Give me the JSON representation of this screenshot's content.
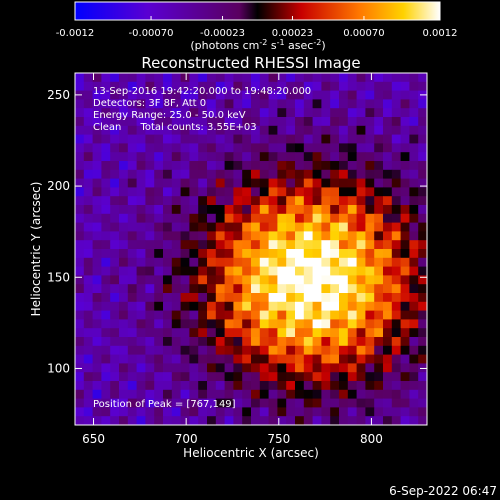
{
  "colorbar": {
    "tick_labels": [
      "-0.0012",
      "-0.00070",
      "-0.00023",
      "0.00023",
      "0.00070",
      "0.0012"
    ],
    "tick_values": [
      -0.0012,
      -0.0007,
      -0.00023,
      0.00023,
      0.0007,
      0.0012
    ],
    "range": [
      -0.0012,
      0.0012
    ],
    "unit_label_parts": [
      "(photons cm",
      "-2",
      " s",
      "-1",
      " asec",
      "-2",
      ")"
    ],
    "palette": [
      "#0000ff",
      "#6b00c8",
      "#ff0000",
      "#ffa500",
      "#ffff00",
      "#ffffff"
    ]
  },
  "chart_data": {
    "type": "heatmap",
    "title": "Reconstructed RHESSI Image",
    "xlabel": "Heliocentric X (arcsec)",
    "ylabel": "Heliocentric Y (arcsec)",
    "xlim": [
      640,
      830
    ],
    "ylim": [
      69,
      262
    ],
    "x_ticks": [
      650,
      700,
      750,
      800
    ],
    "y_ticks": [
      100,
      150,
      200,
      250
    ],
    "x_tick_labels": [
      "650",
      "700",
      "750",
      "800"
    ],
    "y_tick_labels": [
      "100",
      "150",
      "200",
      "250"
    ],
    "annotations": [
      "13-Sep-2016 19:42:20.000 to 19:48:20.000",
      "Detectors: 3F 8F, Att 0",
      "Energy Range: 25.0 - 50.0 keV",
      "Clean      Total counts: 3.55E+03"
    ],
    "peak_label": "Position of Peak = [767,149]",
    "peak_position": [
      767,
      149
    ],
    "value_range": [
      -0.0012,
      0.0012
    ]
  },
  "footer_timestamp": "6-Sep-2022 06:47"
}
